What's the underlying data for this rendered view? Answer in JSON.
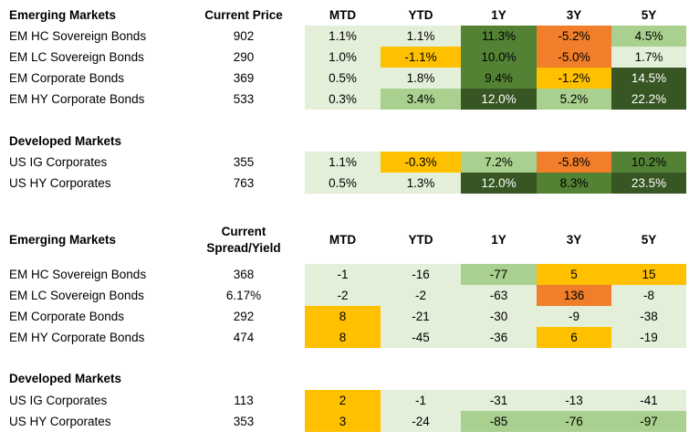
{
  "price_table": {
    "headers": {
      "section": "Emerging Markets",
      "price": "Current Price",
      "cols": [
        "MTD",
        "YTD",
        "1Y",
        "3Y",
        "5Y"
      ]
    },
    "em_rows": [
      {
        "name": "EM HC Sovereign Bonds",
        "price": "902",
        "vals": [
          "1.1%",
          "1.1%",
          "11.3%",
          "-5.2%",
          "4.5%"
        ]
      },
      {
        "name": "EM LC Sovereign Bonds",
        "price": "290",
        "vals": [
          "1.0%",
          "-1.1%",
          "10.0%",
          "-5.0%",
          "1.7%"
        ]
      },
      {
        "name": "EM Corporate Bonds",
        "price": "369",
        "vals": [
          "0.5%",
          "1.8%",
          "9.4%",
          "-1.2%",
          "14.5%"
        ]
      },
      {
        "name": "EM HY Corporate Bonds",
        "price": "533",
        "vals": [
          "0.3%",
          "3.4%",
          "12.0%",
          "5.2%",
          "22.2%"
        ]
      }
    ],
    "dm_section": "Developed Markets",
    "dm_rows": [
      {
        "name": "US IG Corporates",
        "price": "355",
        "vals": [
          "1.1%",
          "-0.3%",
          "7.2%",
          "-5.8%",
          "10.2%"
        ]
      },
      {
        "name": "US HY Corporates",
        "price": "763",
        "vals": [
          "0.5%",
          "1.3%",
          "12.0%",
          "8.3%",
          "23.5%"
        ]
      }
    ]
  },
  "spread_table": {
    "headers": {
      "section": "Emerging Markets",
      "price_line1": "Current",
      "price_line2": "Spread/Yield",
      "cols": [
        "MTD",
        "YTD",
        "1Y",
        "3Y",
        "5Y"
      ]
    },
    "em_rows": [
      {
        "name": "EM HC Sovereign Bonds",
        "price": "368",
        "vals": [
          "-1",
          "-16",
          "-77",
          "5",
          "15"
        ]
      },
      {
        "name": "EM LC Sovereign Bonds",
        "price": "6.17%",
        "vals": [
          "-2",
          "-2",
          "-63",
          "136",
          "-8"
        ]
      },
      {
        "name": "EM Corporate Bonds",
        "price": "292",
        "vals": [
          "8",
          "-21",
          "-30",
          "-9",
          "-38"
        ]
      },
      {
        "name": "EM HY Corporate Bonds",
        "price": "474",
        "vals": [
          "8",
          "-45",
          "-36",
          "6",
          "-19"
        ]
      }
    ],
    "dm_section": "Developed Markets",
    "dm_rows": [
      {
        "name": "US IG Corporates",
        "price": "113",
        "vals": [
          "2",
          "-1",
          "-31",
          "-13",
          "-41"
        ]
      },
      {
        "name": "US HY Corporates",
        "price": "353",
        "vals": [
          "3",
          "-24",
          "-85",
          "-76",
          "-97"
        ]
      }
    ]
  },
  "colors": {
    "light": "#e3efd9",
    "mid": "#a9d08e",
    "dark": "#548235",
    "very_dark": "#375623",
    "yellow": "#ffc000",
    "orange": "#f07e2a"
  }
}
